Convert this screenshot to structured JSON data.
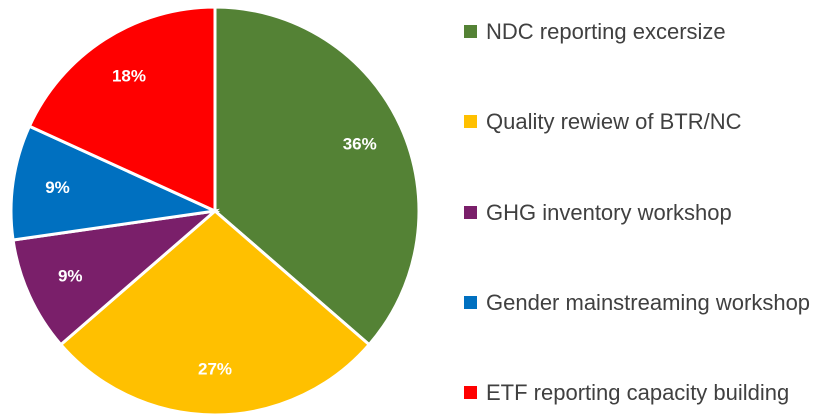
{
  "chart_data": {
    "type": "pie",
    "categories": [
      "NDC reporting excersize",
      "Quality rewiew of BTR/NC",
      "GHG inventory workshop",
      "Gender mainstreaming workshop",
      "ETF reporting capacity building"
    ],
    "values": [
      36,
      27,
      9,
      9,
      18
    ],
    "value_labels": [
      "36%",
      "27%",
      "9%",
      "9%",
      "18%"
    ],
    "colors": [
      "#548235",
      "#ffc000",
      "#7a1f6a",
      "#0070c0",
      "#ff0000"
    ],
    "legend": "right"
  }
}
